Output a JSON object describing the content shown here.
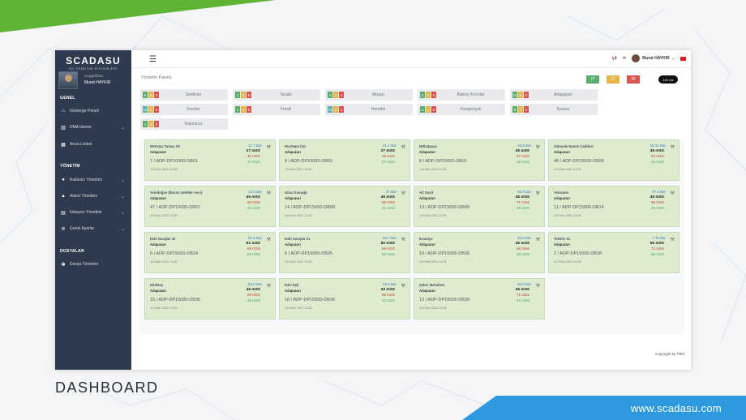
{
  "frame": {
    "caption": "DASHBOARD",
    "url": "www.scadasu.com",
    "colors": {
      "green": "#5fb335",
      "blue": "#2d9ae0",
      "sidebar": "#2e3b4e",
      "card": "#ddeccf"
    }
  },
  "sidebar": {
    "logo_name": "SCADASU",
    "logo_sub": "SU YÖNETİM SİSTEMLERİ",
    "greeting": "Hoşgeldiniz,",
    "user_name": "Murat HAYKIR",
    "section_general": "GENEL",
    "section_management": "YÖNETİM",
    "section_files": "DOSYALAR",
    "items": [
      {
        "label": "Gösterge Paneli",
        "icon": "home-icon"
      },
      {
        "label": "DMA İzleme",
        "icon": "chart-icon",
        "chevron": true
      },
      {
        "label": "Arıza Listesi",
        "icon": "calendar-icon"
      },
      {
        "label": "Kullanıcı Yönetimi",
        "icon": "user-icon",
        "chevron": true
      },
      {
        "label": "Alarm Yönetimi",
        "icon": "warning-icon",
        "chevron": true
      },
      {
        "label": "İstasyon Yönetimi",
        "icon": "station-icon",
        "chevron": true
      },
      {
        "label": "Genel Ayarlar",
        "icon": "gear-icon",
        "chevron": true
      },
      {
        "label": "Dosya Yönetimi",
        "icon": "paw-icon"
      }
    ]
  },
  "topbar": {
    "user_name": "Murat HAYKIR",
    "icons": [
      "megaphone-icon",
      "mail-icon",
      "avatar",
      "flag-icon"
    ]
  },
  "page": {
    "breadcrumb": "Yönetim Paneli",
    "counts": {
      "green": "77",
      "yellow": "11",
      "red": "26"
    },
    "speed_badge": "102 ms"
  },
  "regions": [
    {
      "name": "Serdivan",
      "b": [
        "8",
        "0",
        "3"
      ]
    },
    {
      "name": "Taraklı",
      "b": [
        "1",
        "1",
        "0"
      ]
    },
    {
      "name": "Akyazı",
      "b": [
        "3",
        "1",
        "1"
      ]
    },
    {
      "name": "Basınç Kırıcılar",
      "b": [
        "0",
        "2",
        "0"
      ]
    },
    {
      "name": "Adapazarı",
      "b": [
        "15",
        "0",
        "0"
      ]
    },
    {
      "name": "Erenler",
      "b": [
        "10",
        "2",
        "4"
      ]
    },
    {
      "name": "Ferizli",
      "b": [
        "1",
        "0",
        "0"
      ]
    },
    {
      "name": "Hendek",
      "b": [
        "13",
        "3",
        "1"
      ]
    },
    {
      "name": "Karapürçek",
      "b": [
        "2",
        "1",
        "0"
      ]
    },
    {
      "name": "Karasu",
      "b": [
        "9",
        "1",
        "2"
      ]
    },
    {
      "name": "Kaynarca",
      "b": [
        "1",
        "0",
        "0"
      ]
    }
  ],
  "stations": [
    {
      "name": "Metropa Yamaç Sk",
      "region": "Adapazarı",
      "device": "7 / ADP-DP10000-DB01",
      "time": "14 Ekim 2021 11:28",
      "v1": "12.7 Bar",
      "v2": "27 mSS",
      "v3": "45 mSS",
      "v4": "27 mSS"
    },
    {
      "name": "Huzrtepe Üst",
      "region": "Adapazarı",
      "device": "9 / ADP-DP10000-DB02",
      "time": "14 Ekim 2021 11:28",
      "v1": "21.1 Bar",
      "v2": "27 mSS",
      "v3": "36 mSS",
      "v4": "27 mSS"
    },
    {
      "name": "Mithatpaşa",
      "region": "Adapazarı",
      "device": "8 / ADP-DP15000-DB01",
      "time": "14 Ekim 2021 11:28",
      "v1": "18.5 Bar",
      "v2": "45 mSS",
      "v3": "57 mSS",
      "v4": "45 mSS"
    },
    {
      "name": "Zübeyde Hanım Caddesi",
      "region": "Adapazarı",
      "device": "48 / ADP-DP15000-DB05",
      "time": "14 Ekim 2021 11:28",
      "v1": "33.41 Bar",
      "v2": "45 mSS",
      "v3": "63 mSS",
      "v4": "45 mSS"
    },
    {
      "name": "Yenidoğan (Bosna Şehitler Avcı)",
      "region": "Adapazarı",
      "device": "47 / ADP-DP15000-DB07",
      "time": "14 Ekim 2021 11:28",
      "v1": "13.5 Bar",
      "v2": "45 mSS",
      "v3": "69 mSS",
      "v4": "44 mSS"
    },
    {
      "name": "Gima Kavşağı",
      "region": "Adapazarı",
      "device": "14 / ADP-DP15000-DB08",
      "time": "14 Ekim 2021 11:28",
      "v1": "37 Bar",
      "v2": "45 mSS",
      "v3": "68 mSS",
      "v4": "42 mSS"
    },
    {
      "name": "Alt Geçit",
      "region": "Adapazarı",
      "device": "13 / ADP-DP15000-DB09",
      "time": "14 Ekim 2021 11:28",
      "v1": "85.9 Bar",
      "v2": "45 mSS",
      "v3": "71 mSS",
      "v4": "45 mSS"
    },
    {
      "name": "Yenicami",
      "region": "Adapazarı",
      "device": "11 / ADP-DP15000-DB14",
      "time": "14 Ekim 2021 11:28",
      "v1": "37.9 Bar",
      "v2": "45 mSS",
      "v3": "68 mSS",
      "v4": "45 mSS"
    },
    {
      "name": "Eski Garajlar 02",
      "region": "Adapazarı",
      "device": "6 / ADP-DP15000-DB24",
      "time": "14 Ekim 2021 11:28",
      "v1": "61.5 Bar",
      "v2": "51 mSS",
      "v3": "69 mSS",
      "v4": "50 mSS"
    },
    {
      "name": "Eski Garajlar 01",
      "region": "Adapazarı",
      "device": "5 / ADP-DP15000-DB25",
      "time": "14 Ekim 2021 11:28",
      "v1": "50.7 Bar",
      "v2": "50 mSS",
      "v3": "66 mSS",
      "v4": "50 mSS"
    },
    {
      "name": "Ilıcaniye",
      "region": "Adapazarı",
      "device": "10 / ADP-DP15000-DB26",
      "time": "14 Ekim 2021 11:28",
      "v1": "36.5 Bar",
      "v2": "45 mSS",
      "v3": "58 mSS",
      "v4": "45 mSS"
    },
    {
      "name": "Tekeler 01",
      "region": "Adapazarı",
      "device": "2 / ADP-DP15000-DB28",
      "time": "14 Ekim 2021 11:28",
      "v1": "7.75 Bar",
      "v2": "55 mSS",
      "v3": "71 mSS",
      "v4": "56 mSS"
    },
    {
      "name": "Dilektaş",
      "region": "Adapazarı",
      "device": "15 / ADP-DP15000-DB35",
      "time": "14 Ekim 2021 11:28",
      "v1": "53.6 Bar",
      "v2": "45 mSS",
      "v3": "69 mSS",
      "v4": "45 mSS"
    },
    {
      "name": "Eski Reji",
      "region": "Adapazarı",
      "device": "16 / ADP-DP15000-DB36",
      "time": "14 Ekim 2021 11:28",
      "v1": "23.9 Bar",
      "v2": "43 mSS",
      "v3": "69 mSS",
      "v4": "43 mSS"
    },
    {
      "name": "Şeker Mahallesi",
      "region": "Adapazarı",
      "device": "12 / ADP-DP15000-DB39",
      "time": "14 Ekim 2021 11:28",
      "v1": "50.8 Bar",
      "v2": "45 mSS",
      "v3": "71 mSS",
      "v4": "49 mSS"
    }
  ],
  "footer": {
    "copyright": "Copyright by TBM"
  }
}
